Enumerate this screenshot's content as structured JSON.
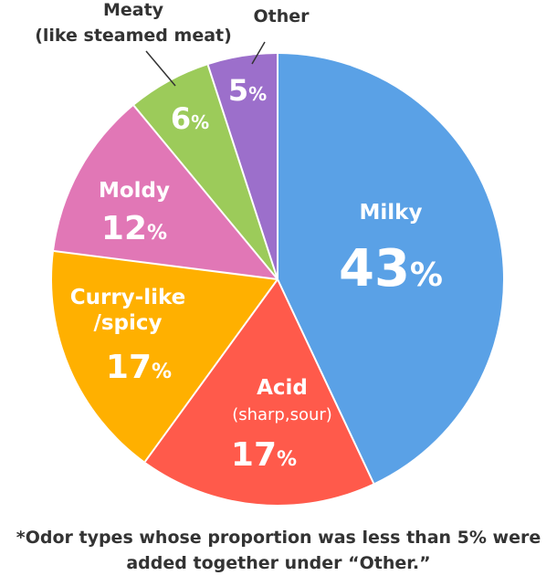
{
  "chart_data": {
    "type": "pie",
    "slices": [
      {
        "key": "milky",
        "name_lines": [
          "Milky"
        ],
        "value": 43,
        "value_label": "43",
        "color": "#5aa1e6"
      },
      {
        "key": "acid",
        "name_lines": [
          "Acid",
          "(sharp,sour)"
        ],
        "value": 17,
        "value_label": "17",
        "color": "#ff5a4b"
      },
      {
        "key": "curry",
        "name_lines": [
          "Curry-like",
          "/spicy"
        ],
        "value": 17,
        "value_label": "17",
        "color": "#ffb000"
      },
      {
        "key": "moldy",
        "name_lines": [
          "Moldy"
        ],
        "value": 12,
        "value_label": "12",
        "color": "#e177b6"
      },
      {
        "key": "meaty",
        "name_lines": [
          "Meaty",
          "(like steamed meat)"
        ],
        "value": 6,
        "value_label": "6",
        "color": "#9ccb5a"
      },
      {
        "key": "other",
        "name_lines": [
          "Other"
        ],
        "value": 5,
        "value_label": "5",
        "color": "#9c6fcb"
      }
    ],
    "percent_sign": "%"
  },
  "footnote": {
    "line1": "*Odor types whose proportion was less than 5% were",
    "line2": "added together under “Other.”"
  }
}
